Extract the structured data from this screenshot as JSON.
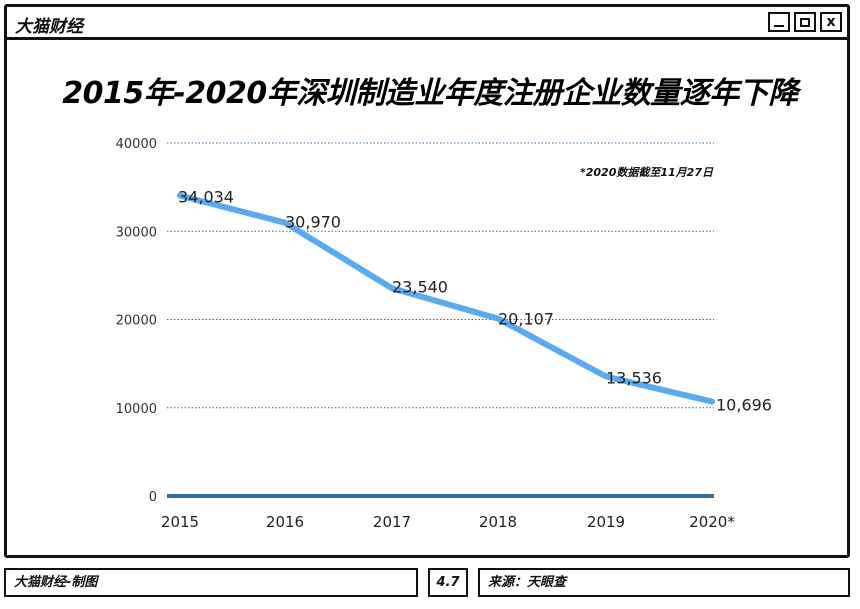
{
  "window": {
    "app_name": "大猫财经",
    "controls": {
      "close_symbol": "x"
    }
  },
  "chart_data": {
    "type": "line",
    "title": "2015年-2020年深圳制造业年度注册企业数量逐年下降",
    "note": "*2020数据截至11月27日",
    "categories": [
      "2015",
      "2016",
      "2017",
      "2018",
      "2019",
      "2020*"
    ],
    "series": [
      {
        "values": [
          34034,
          30970,
          23540,
          20107,
          13536,
          10696
        ],
        "labels": [
          "34,034",
          "30,970",
          "23,540",
          "20,107",
          "13,536",
          "10,696"
        ]
      }
    ],
    "yticks": [
      "0",
      "10000",
      "20000",
      "30000",
      "40000"
    ],
    "ylim": [
      0,
      40000
    ],
    "grid": true,
    "line_color": "#5aaaf0",
    "grid_color": "#2e6e9e"
  },
  "footer": {
    "credit": "大猫财经-制图",
    "date": "4.7",
    "source": "来源：天眼查"
  }
}
